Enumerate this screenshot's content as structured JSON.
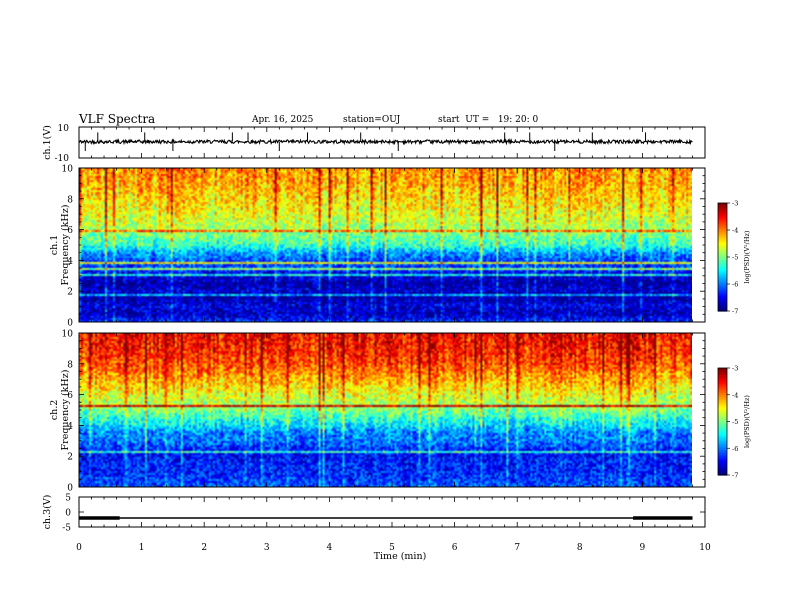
{
  "header": {
    "title": "VLF Spectra",
    "date": "Apr. 16, 2025",
    "station": "station=OUJ",
    "start_ut": "start  UT =   19: 20: 0"
  },
  "chart_data": [
    {
      "type": "line",
      "panel": "ch1-waveform",
      "ylabel": "ch.1(V)",
      "y_tick_labels": [
        "10",
        "-10"
      ],
      "ylim": [
        -10,
        10
      ],
      "xlim": [
        0,
        10
      ],
      "description_series": "waveform",
      "series_color": "#000000",
      "baseline": 0.5,
      "spikes_x": [
        0.1,
        0.3,
        1.05,
        1.5,
        2.45,
        2.7,
        3.2,
        3.65,
        4.5,
        5.1,
        6.8,
        7.2,
        7.6,
        8.2,
        9.05
      ]
    },
    {
      "type": "heatmap",
      "panel": "ch1-spectrogram",
      "ylabel": "ch.1\nFrequency (kHz)",
      "ylabel_lines": [
        "ch.1",
        "Frequency (kHz)"
      ],
      "xlim": [
        0,
        10
      ],
      "ylim": [
        0,
        10
      ],
      "y_ticks": [
        0,
        2,
        4,
        6,
        8,
        10
      ],
      "colorbar": {
        "label": "log(PSD)(V²/Hz)",
        "range": [
          -7,
          -3
        ],
        "ticks": [
          -7,
          -6,
          -5,
          -4,
          -3
        ]
      },
      "spectral_levels_by_freq_khz": [
        [
          0,
          -6.4
        ],
        [
          0.5,
          -6.8
        ],
        [
          1,
          -6.6
        ],
        [
          1.5,
          -6.9
        ],
        [
          2,
          -6.7
        ],
        [
          2.5,
          -6.9
        ],
        [
          3,
          -6.6
        ],
        [
          3.5,
          -6.3
        ],
        [
          4,
          -6.2
        ],
        [
          4.5,
          -5.9
        ],
        [
          5,
          -5.3
        ],
        [
          6,
          -4.9
        ],
        [
          7,
          -4.6
        ],
        [
          8,
          -4.4
        ],
        [
          9,
          -4.2
        ],
        [
          10,
          -4.1
        ]
      ]
    },
    {
      "type": "heatmap",
      "panel": "ch2-spectrogram",
      "ylabel": "ch.2\nFrequency (kHz)",
      "ylabel_lines": [
        "ch.2",
        "Frequency (kHz)"
      ],
      "xlim": [
        0,
        10
      ],
      "ylim": [
        0,
        10
      ],
      "y_ticks": [
        0,
        2,
        4,
        6,
        8,
        10
      ],
      "colorbar": {
        "label": "log(PSD)(V²/Hz)",
        "range": [
          -7,
          -3
        ],
        "ticks": [
          -7,
          -6,
          -5,
          -4,
          -3
        ]
      },
      "spectral_levels_by_freq_khz": [
        [
          0,
          -6.2
        ],
        [
          0.5,
          -6.3
        ],
        [
          1,
          -6.4
        ],
        [
          1.5,
          -6.4
        ],
        [
          2,
          -6.5
        ],
        [
          2.5,
          -6.3
        ],
        [
          3,
          -6.0
        ],
        [
          3.5,
          -6.0
        ],
        [
          4,
          -5.6
        ],
        [
          4.5,
          -5.3
        ],
        [
          5,
          -5.0
        ],
        [
          6,
          -4.6
        ],
        [
          7,
          -4.2
        ],
        [
          8,
          -3.8
        ],
        [
          9,
          -3.6
        ],
        [
          10,
          -3.5
        ]
      ]
    },
    {
      "type": "line",
      "panel": "ch3-waveform",
      "ylabel": "ch.3(V)",
      "y_tick_labels": [
        "5",
        "0",
        "-5"
      ],
      "ylim": [
        -5,
        5
      ],
      "xlim": [
        0,
        10
      ],
      "series_color": "#000000",
      "baseline": -2.0,
      "thick_segments_x": [
        [
          0,
          0.65
        ],
        [
          8.85,
          9.8
        ]
      ],
      "x_ticks": [
        0,
        1,
        2,
        3,
        4,
        5,
        6,
        7,
        8,
        9,
        10
      ],
      "xlabel": "Time (min)"
    }
  ],
  "x_tick_labels": [
    "0",
    "1",
    "2",
    "3",
    "4",
    "5",
    "6",
    "7",
    "8",
    "9",
    "10"
  ],
  "xlabel": "Time (min)",
  "colorbar_tick_labels": [
    "-3",
    "-4",
    "-5",
    "-6",
    "-7"
  ],
  "colorbar_label": "log(PSD)(V²/Hz)"
}
